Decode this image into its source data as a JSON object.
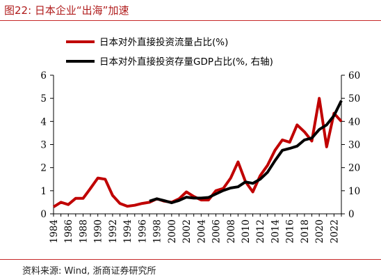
{
  "figure": {
    "title": "图22:  日本企业“出海”加速",
    "source": "资料来源: Wind, 浙商证券研究所",
    "colors": {
      "accent": "#c62828",
      "series_flow": "#c00000",
      "series_stock": "#000000"
    }
  },
  "chart_data": {
    "type": "line",
    "title": "",
    "xlabel": "",
    "ylabel": "",
    "y2label": "",
    "x_tick_labels": [
      "1984",
      "1986",
      "1988",
      "1990",
      "1992",
      "1994",
      "1996",
      "1998",
      "2000",
      "2002",
      "2004",
      "2006",
      "2008",
      "2010",
      "2012",
      "2014",
      "2016",
      "2018",
      "2020",
      "2022"
    ],
    "y_tick_labels": [
      "0",
      "1",
      "2",
      "3",
      "4",
      "5",
      "6"
    ],
    "y2_tick_labels": [
      "0",
      "10",
      "20",
      "30",
      "40",
      "50",
      "60"
    ],
    "xlim": [
      1984,
      2023
    ],
    "ylim": [
      0,
      6
    ],
    "y2lim": [
      0,
      60
    ],
    "grid": false,
    "legend_position": "top-left",
    "series": [
      {
        "name": "日本对外直接投资流量占比(%)",
        "axis": "left",
        "color": "#c00000",
        "x": [
          1984,
          1985,
          1986,
          1987,
          1988,
          1989,
          1990,
          1991,
          1992,
          1993,
          1994,
          1995,
          1996,
          1997,
          1998,
          1999,
          2000,
          2001,
          2002,
          2003,
          2004,
          2005,
          2006,
          2007,
          2008,
          2009,
          2010,
          2011,
          2012,
          2013,
          2014,
          2015,
          2016,
          2017,
          2018,
          2019,
          2020,
          2021,
          2022,
          2023
        ],
        "values": [
          0.3,
          0.5,
          0.4,
          0.67,
          0.67,
          1.1,
          1.55,
          1.5,
          0.8,
          0.45,
          0.33,
          0.37,
          0.45,
          0.5,
          0.65,
          0.55,
          0.5,
          0.65,
          0.95,
          0.75,
          0.6,
          0.6,
          1.0,
          1.1,
          1.55,
          2.25,
          1.4,
          0.95,
          1.65,
          2.1,
          2.75,
          3.2,
          3.1,
          3.85,
          3.55,
          3.15,
          5.0,
          2.9,
          4.35,
          4.0
        ]
      },
      {
        "name": "日本对外直接投资存量GDP占比(%, 右轴)",
        "axis": "right",
        "color": "#000000",
        "x": [
          1997,
          1998,
          1999,
          2000,
          2001,
          2002,
          2003,
          2004,
          2005,
          2006,
          2007,
          2008,
          2009,
          2010,
          2011,
          2012,
          2013,
          2014,
          2015,
          2016,
          2017,
          2018,
          2019,
          2020,
          2021,
          2022,
          2023
        ],
        "values": [
          5.5,
          6.5,
          5.7,
          4.8,
          5.8,
          7.2,
          6.8,
          6.8,
          7.1,
          8.6,
          10.1,
          11.2,
          11.7,
          13.8,
          13.2,
          15.0,
          18.0,
          23.0,
          27.5,
          28.3,
          29.3,
          32.0,
          32.8,
          36.5,
          38.5,
          42.5,
          49.0
        ]
      }
    ]
  }
}
